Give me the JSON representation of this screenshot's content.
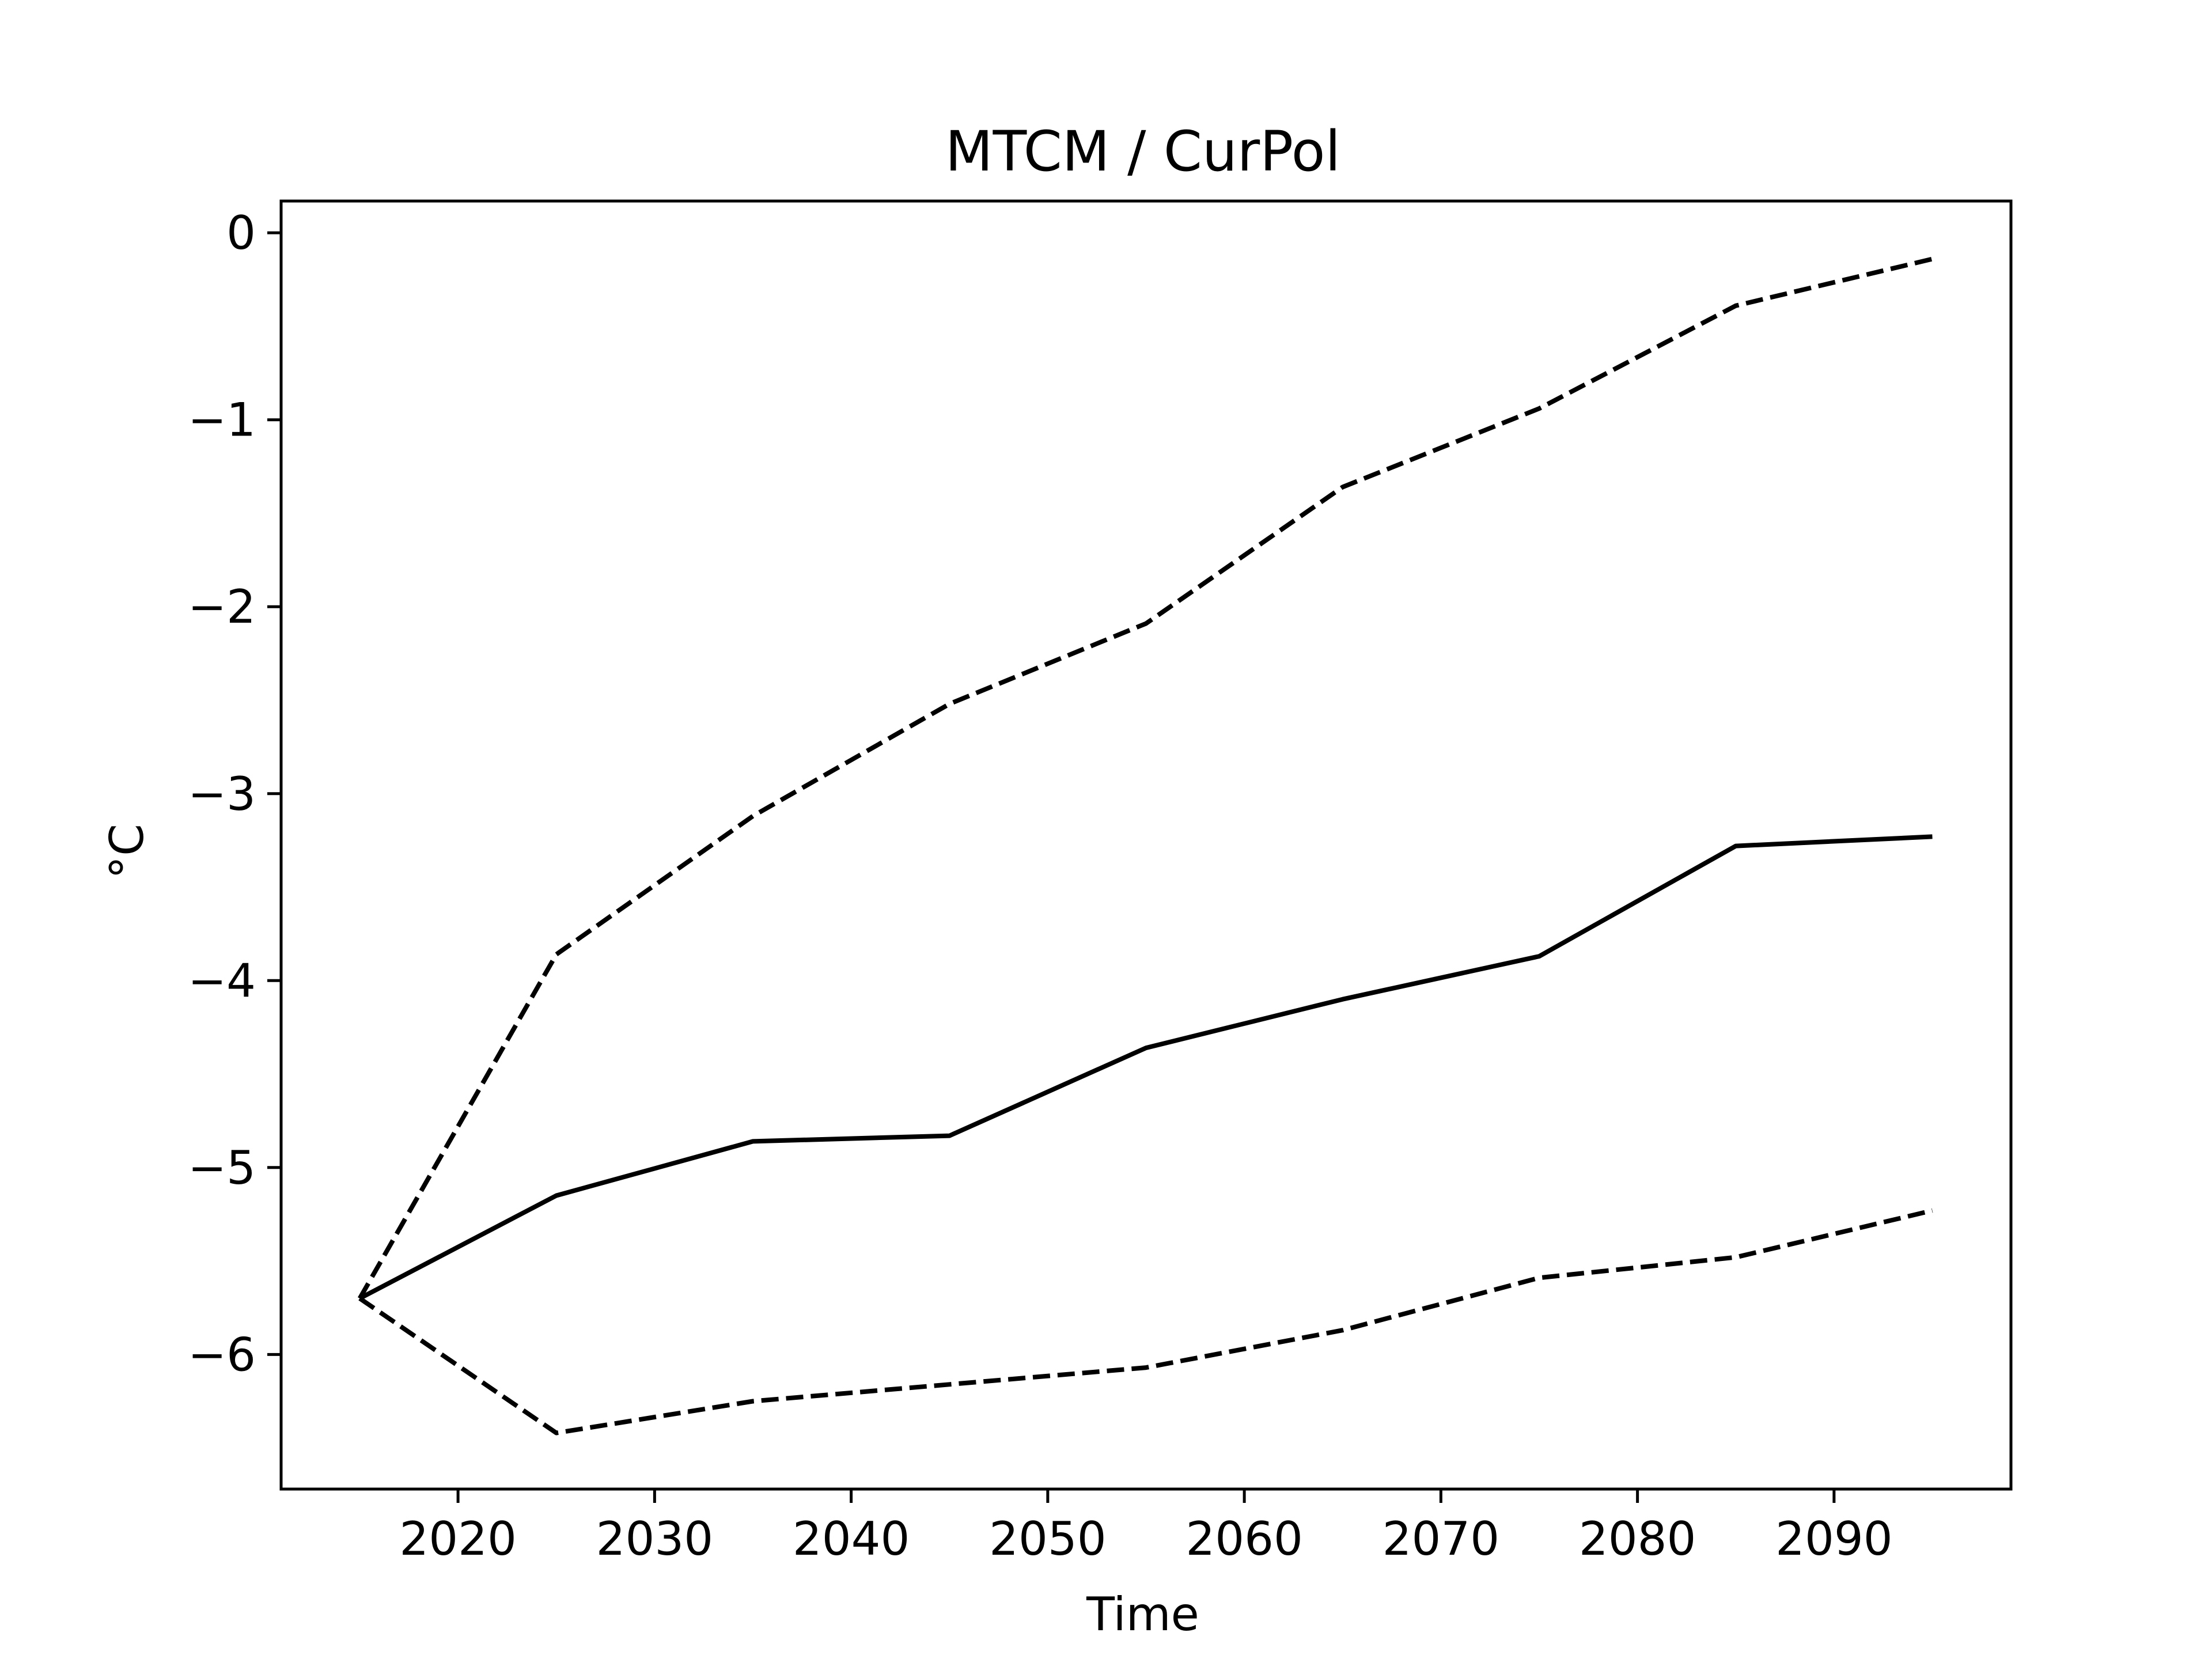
{
  "chart_data": {
    "type": "line",
    "title": "MTCM / CurPol",
    "xlabel": "Time",
    "ylabel": "°C",
    "xlim": [
      2011,
      2099
    ],
    "ylim": [
      -6.72,
      0.17
    ],
    "xticks": [
      2020,
      2030,
      2040,
      2050,
      2060,
      2070,
      2080,
      2090
    ],
    "yticks": [
      0,
      -1,
      -2,
      -3,
      -4,
      -5,
      -6
    ],
    "ytick_labels": [
      "0",
      "−1",
      "−2",
      "−3",
      "−4",
      "−5",
      "−6"
    ],
    "grid": false,
    "x": [
      2015,
      2025,
      2035,
      2045,
      2055,
      2065,
      2075,
      2085,
      2095
    ],
    "series": [
      {
        "style": "solid",
        "color": "#000000",
        "values": [
          -5.7,
          -5.15,
          -4.86,
          -4.83,
          -4.36,
          -4.1,
          -3.87,
          -3.28,
          -3.23
        ]
      },
      {
        "style": "dashed",
        "color": "#000000",
        "values": [
          -5.7,
          -3.86,
          -3.12,
          -2.52,
          -2.09,
          -1.36,
          -0.94,
          -0.39,
          -0.14
        ]
      },
      {
        "style": "dashed",
        "color": "#000000",
        "values": [
          -5.7,
          -6.42,
          -6.25,
          -6.16,
          -6.07,
          -5.87,
          -5.59,
          -5.48,
          -5.23
        ]
      }
    ]
  }
}
